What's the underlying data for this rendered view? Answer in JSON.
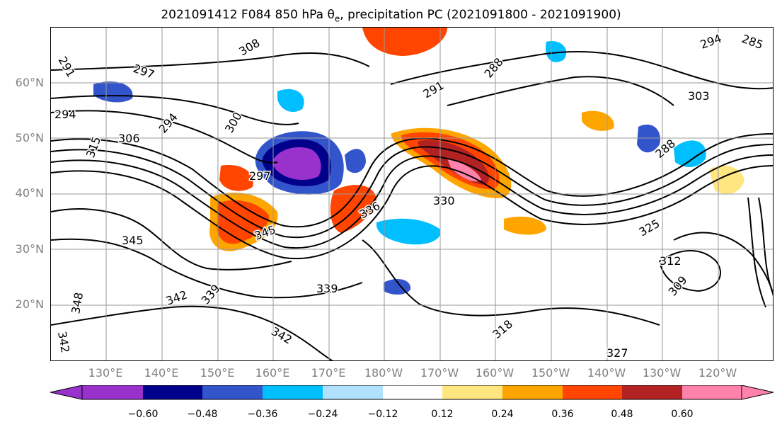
{
  "title_parts": {
    "prefix": "2021091412 F084 850 hPa θ",
    "subscript": "e",
    "suffix": ", precipitation PC (2021091800 - 2021091900)"
  },
  "map": {
    "lat_labels": [
      "60°N",
      "50°N",
      "40°N",
      "30°N",
      "20°N"
    ],
    "lon_labels": [
      "130°E",
      "140°E",
      "150°E",
      "160°E",
      "170°E",
      "180°W",
      "170°W",
      "160°W",
      "150°W",
      "140°W",
      "130°W",
      "120°W"
    ],
    "gridline_color": "#9a9a9a",
    "contour_labels": [
      "291",
      "308",
      "297",
      "294",
      "306",
      "315",
      "300",
      "294",
      "297",
      "330",
      "336",
      "345",
      "342",
      "339",
      "339",
      "342",
      "288",
      "291",
      "303",
      "294",
      "285",
      "288",
      "325",
      "312",
      "309",
      "318",
      "327",
      "342",
      "348",
      "345"
    ]
  },
  "colorbar": {
    "colors": [
      "#9932CC",
      "#00008B",
      "#3355CC",
      "#00BFFF",
      "#B0E2FF",
      "#FFFFFF",
      "#FFE680",
      "#FFA500",
      "#FF4500",
      "#B22222",
      "#FF82AB"
    ],
    "tick_labels": [
      "−0.60",
      "−0.48",
      "−0.36",
      "−0.24",
      "−0.12",
      "0.12",
      "0.24",
      "0.36",
      "0.48",
      "0.60"
    ]
  }
}
